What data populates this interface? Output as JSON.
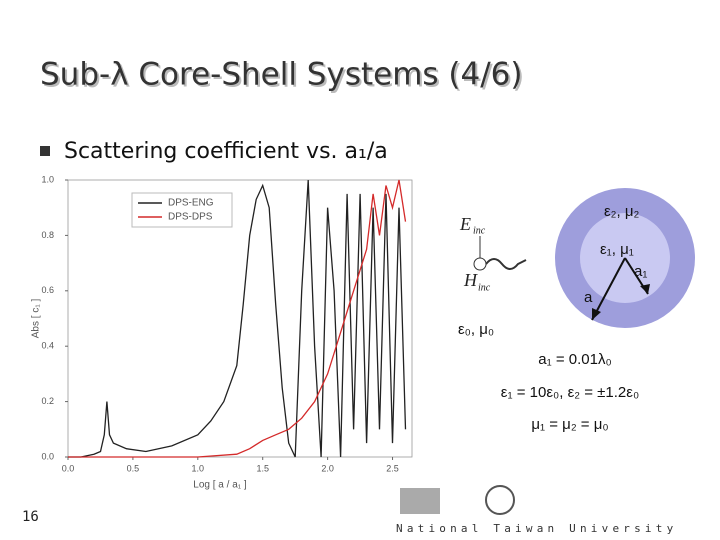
{
  "header": {
    "title": "Sub-λ Core-Shell Systems (4/6)"
  },
  "bullet": {
    "marker": "n",
    "text": "Scattering coefficient vs. a₁/a"
  },
  "plot": {
    "type": "line",
    "xlabel": "Log [ a / a₁ ]",
    "ylabel": "Abs [ c₁ ]",
    "xlim": [
      0,
      2.65
    ],
    "ylim": [
      0,
      1
    ],
    "xticks": [
      {
        "value": 0,
        "label": "0.0"
      },
      {
        "value": 0.5,
        "label": "0.5"
      },
      {
        "value": 1,
        "label": "1.0"
      },
      {
        "value": 1.5,
        "label": "1.5"
      },
      {
        "value": 2,
        "label": "2.0"
      },
      {
        "value": 2.5,
        "label": "2.5"
      }
    ],
    "yticks": [
      {
        "value": 0,
        "label": "0.0"
      },
      {
        "value": 0.2,
        "label": "0.2"
      },
      {
        "value": 0.4,
        "label": "0.4"
      },
      {
        "value": 0.6,
        "label": "0.6"
      },
      {
        "value": 0.8,
        "label": "0.8"
      },
      {
        "value": 1,
        "label": "1.0"
      }
    ],
    "series": [
      {
        "name": "DPS-ENG",
        "color": "#222222",
        "x": [
          0,
          0.1,
          0.2,
          0.25,
          0.28,
          0.3,
          0.32,
          0.35,
          0.45,
          0.6,
          0.8,
          1.0,
          1.1,
          1.2,
          1.3,
          1.35,
          1.4,
          1.45,
          1.5,
          1.55,
          1.6,
          1.65,
          1.7,
          1.75,
          1.8,
          1.85,
          1.9,
          1.95,
          2.0,
          2.05,
          2.1,
          2.15,
          2.2,
          2.25,
          2.3,
          2.35,
          2.4,
          2.45,
          2.5,
          2.55,
          2.6
        ],
        "values": [
          0,
          0,
          0.01,
          0.02,
          0.08,
          0.2,
          0.08,
          0.05,
          0.03,
          0.02,
          0.04,
          0.08,
          0.13,
          0.2,
          0.33,
          0.55,
          0.8,
          0.93,
          0.98,
          0.9,
          0.55,
          0.25,
          0.05,
          0,
          0.6,
          1,
          0.4,
          0,
          0.9,
          0.6,
          0,
          0.95,
          0.1,
          0.95,
          0.05,
          0.9,
          0.1,
          0.95,
          0.05,
          0.9,
          0.1
        ]
      },
      {
        "name": "DPS-DPS",
        "color": "#d42a2a",
        "x": [
          0,
          0.5,
          1.0,
          1.3,
          1.4,
          1.5,
          1.6,
          1.7,
          1.8,
          1.9,
          2.0,
          2.1,
          2.2,
          2.3,
          2.35,
          2.4,
          2.45,
          2.5,
          2.55,
          2.6
        ],
        "values": [
          0,
          0,
          0,
          0.01,
          0.03,
          0.06,
          0.08,
          0.1,
          0.14,
          0.2,
          0.3,
          0.45,
          0.6,
          0.75,
          0.95,
          0.8,
          0.98,
          0.9,
          1,
          0.85
        ]
      }
    ]
  },
  "diagram": {
    "e_inc": "E",
    "e_inc_sub": "inc",
    "h_inc": "H",
    "h_inc_sub": "inc",
    "outer_label": "ε₂, μ₂",
    "inner_label": "ε₁, μ₁",
    "inner_radius": "a₁",
    "outer_radius": "a",
    "background_label": "ε₀, μ₀"
  },
  "equations": [
    "a₁ = 0.01λ₀",
    "ε₁ = 10ε₀, ε₂ = ±1.2ε₀",
    "μ₁ = μ₂ = μ₀"
  ],
  "footer": {
    "page": "16",
    "university": "National Taiwan University"
  }
}
